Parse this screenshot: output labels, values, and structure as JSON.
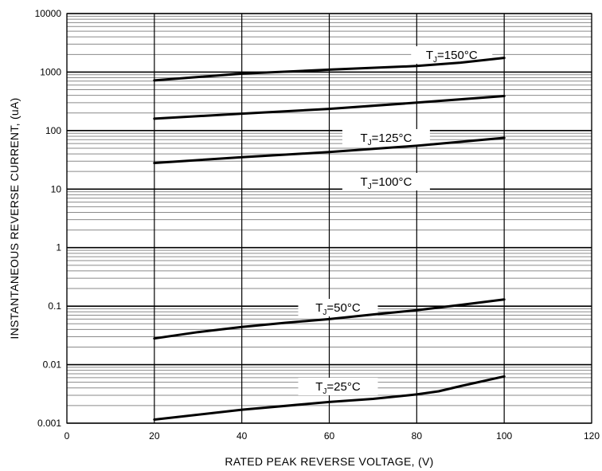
{
  "chart_data": {
    "type": "line",
    "title": "",
    "xlabel": "RATED PEAK REVERSE VOLTAGE, (V)",
    "ylabel": "INSTANTANEOUS REVERSE CURRENT, (uA)",
    "xlim": [
      0,
      120
    ],
    "ylim": [
      0.001,
      10000
    ],
    "yscale": "log",
    "grid": true,
    "x_ticks": [
      "0",
      "20",
      "40",
      "60",
      "80",
      "100",
      "120"
    ],
    "y_ticks": [
      "0.001",
      "0.01",
      "0.1",
      "1",
      "10",
      "100",
      "1000",
      "10000"
    ],
    "series": [
      {
        "name": "TJ=150°C",
        "label_main": "T",
        "label_sub": "J",
        "label_rest": "=150°C",
        "x": [
          20,
          40,
          60,
          80,
          90,
          100
        ],
        "y": [
          720,
          940,
          1100,
          1270,
          1450,
          1750
        ]
      },
      {
        "name": "",
        "label_main": "",
        "label_sub": "",
        "label_rest": "",
        "x": [
          20,
          40,
          60,
          80,
          100
        ],
        "y": [
          160,
          195,
          235,
          300,
          390
        ]
      },
      {
        "name": "TJ=125°C",
        "label_main": "T",
        "label_sub": "J",
        "label_rest": "=125°C",
        "x": [
          20,
          40,
          60,
          80,
          100
        ],
        "y": [
          28,
          35,
          43,
          55,
          75
        ]
      },
      {
        "name": "TJ=100°C",
        "label_main": "T",
        "label_sub": "J",
        "label_rest": "=100°C",
        "x": [],
        "y": []
      },
      {
        "name": "TJ=50°C",
        "label_main": "T",
        "label_sub": "J",
        "label_rest": "=50°C",
        "x": [
          20,
          30,
          40,
          50,
          60,
          70,
          80,
          90,
          100
        ],
        "y": [
          0.028,
          0.036,
          0.044,
          0.052,
          0.06,
          0.072,
          0.085,
          0.105,
          0.13
        ]
      },
      {
        "name": "TJ=25°C",
        "label_main": "T",
        "label_sub": "J",
        "label_rest": "=25°C",
        "x": [
          20,
          40,
          60,
          70,
          80,
          85,
          90,
          100
        ],
        "y": [
          0.00115,
          0.0017,
          0.0023,
          0.0026,
          0.0031,
          0.0035,
          0.0043,
          0.0063
        ]
      }
    ]
  }
}
